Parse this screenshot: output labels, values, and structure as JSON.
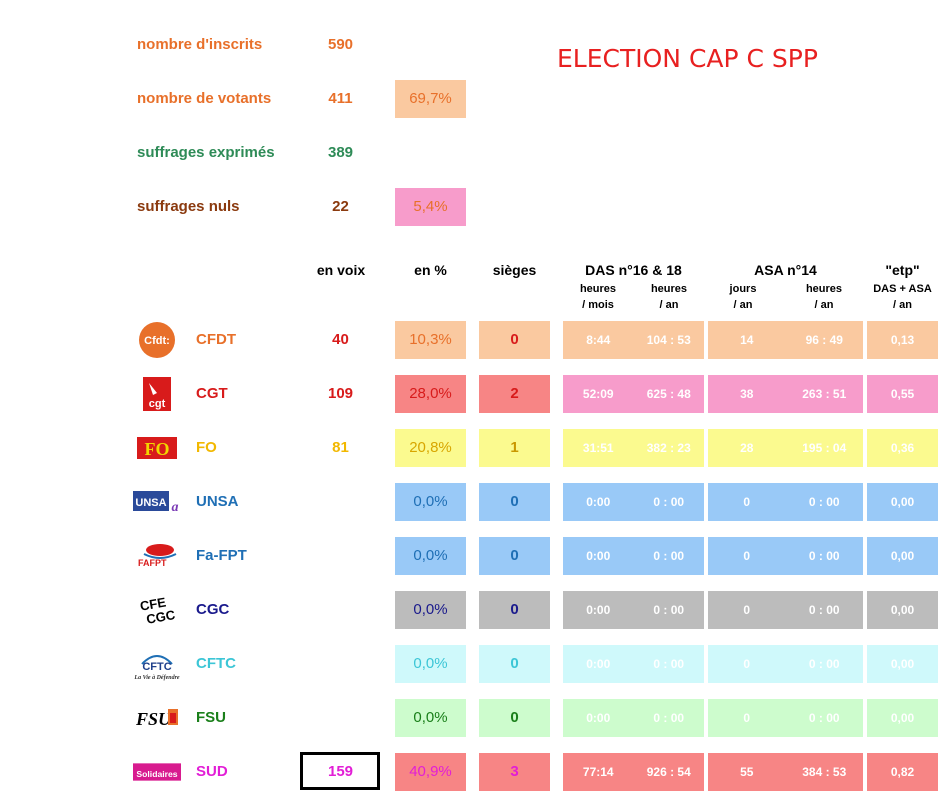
{
  "title": "ELECTION CAP C SPP",
  "stats": [
    {
      "label": "nombre d'inscrits",
      "value": "590",
      "pct": "",
      "color": "#e8702a",
      "pct_bg": ""
    },
    {
      "label": "nombre de votants",
      "value": "411",
      "pct": "69,7%",
      "color": "#e8702a",
      "pct_bg": "#fac9a0"
    },
    {
      "label": "suffrages exprimés",
      "value": "389",
      "pct": "",
      "color": "#2e8b57",
      "pct_bg": ""
    },
    {
      "label": "suffrages nuls",
      "value": "22",
      "pct": "5,4%",
      "color": "#8b3a0f",
      "pct_bg": "#f79ccb"
    }
  ],
  "headers": {
    "en_voix": "en voix",
    "en_pct": "en %",
    "sieges": "sièges",
    "das": "DAS n°16 & 18",
    "asa": "ASA n°14",
    "etp": "\"etp\"",
    "das_sub1": "heures",
    "das_sub1b": "/ mois",
    "das_sub2": "heures",
    "das_sub2b": "/ an",
    "asa_sub1": "jours",
    "asa_sub1b": "/ an",
    "asa_sub2": "heures",
    "asa_sub2b": "/ an",
    "etp_sub": "DAS + ASA",
    "etp_subb": "/ an"
  },
  "unions": [
    {
      "name": "CFDT",
      "votes": "40",
      "pct": "10,3%",
      "seats": "0",
      "das_m": "8:44",
      "das_y": "104 : 53",
      "asa_d": "14",
      "asa_h": "96 : 49",
      "etp": "0,13",
      "name_color": "#e8702a",
      "votes_color": "#d81b1b",
      "seats_color": "#d81b1b",
      "bg": "#fac9a0",
      "logo": "cfdt-logo"
    },
    {
      "name": "CGT",
      "votes": "109",
      "pct": "28,0%",
      "seats": "2",
      "das_m": "52:09",
      "das_y": "625 : 48",
      "asa_d": "38",
      "asa_h": "263 : 51",
      "etp": "0,55",
      "name_color": "#d81b1b",
      "votes_color": "#d81b1b",
      "seats_color": "#d81b1b",
      "bg": "#f78585",
      "pct_bg": "#f78585",
      "row_bg": "#f79ccb",
      "logo": "cgt-logo"
    },
    {
      "name": "FO",
      "votes": "81",
      "pct": "20,8%",
      "seats": "1",
      "das_m": "31:51",
      "das_y": "382 : 23",
      "asa_d": "28",
      "asa_h": "195 : 04",
      "etp": "0,36",
      "name_color": "#f2b800",
      "votes_color": "#f2b800",
      "seats_color": "#c99700",
      "bg": "#fbfa8f",
      "logo": "fo-logo"
    },
    {
      "name": "UNSA",
      "votes": "",
      "pct": "0,0%",
      "seats": "0",
      "das_m": "0:00",
      "das_y": "0 : 00",
      "asa_d": "0",
      "asa_h": "0 : 00",
      "etp": "0,00",
      "name_color": "#1f6fb5",
      "votes_color": "#1f6fb5",
      "seats_color": "#1f6fb5",
      "bg": "#99c9f7",
      "logo": "unsa-logo"
    },
    {
      "name": "Fa-FPT",
      "votes": "",
      "pct": "0,0%",
      "seats": "0",
      "das_m": "0:00",
      "das_y": "0 : 00",
      "asa_d": "0",
      "asa_h": "0 : 00",
      "etp": "0,00",
      "name_color": "#1f6fb5",
      "votes_color": "#1f6fb5",
      "seats_color": "#1f6fb5",
      "bg": "#99c9f7",
      "logo": "fafpt-logo"
    },
    {
      "name": "CGC",
      "votes": "",
      "pct": "0,0%",
      "seats": "0",
      "das_m": "0:00",
      "das_y": "0 : 00",
      "asa_d": "0",
      "asa_h": "0 : 00",
      "etp": "0,00",
      "name_color": "#1a1a8c",
      "votes_color": "#1a1a8c",
      "seats_color": "#1a1a8c",
      "bg": "#bcbcbc",
      "logo": "cfe-cgc-logo"
    },
    {
      "name": "CFTC",
      "votes": "",
      "pct": "0,0%",
      "seats": "0",
      "das_m": "0:00",
      "das_y": "0 : 00",
      "asa_d": "0",
      "asa_h": "0 : 00",
      "etp": "0,00",
      "name_color": "#3cc6d6",
      "votes_color": "#3cc6d6",
      "seats_color": "#3cc6d6",
      "bg": "#cff9fb",
      "logo": "cftc-logo"
    },
    {
      "name": "FSU",
      "votes": "",
      "pct": "0,0%",
      "seats": "0",
      "das_m": "0:00",
      "das_y": "0 : 00",
      "asa_d": "0",
      "asa_h": "0 : 00",
      "etp": "0,00",
      "name_color": "#1a7f1a",
      "votes_color": "#1a7f1a",
      "seats_color": "#1a7f1a",
      "bg": "#cdfccd",
      "logo": "fsu-logo"
    },
    {
      "name": "SUD",
      "votes": "159",
      "pct": "40,9%",
      "seats": "3",
      "das_m": "77:14",
      "das_y": "926 : 54",
      "asa_d": "55",
      "asa_h": "384 : 53",
      "etp": "0,82",
      "name_color": "#e21ed6",
      "votes_color": "#e21ed6",
      "seats_color": "#e21ed6",
      "bg": "#f78585",
      "logo": "solidaires-logo"
    }
  ]
}
